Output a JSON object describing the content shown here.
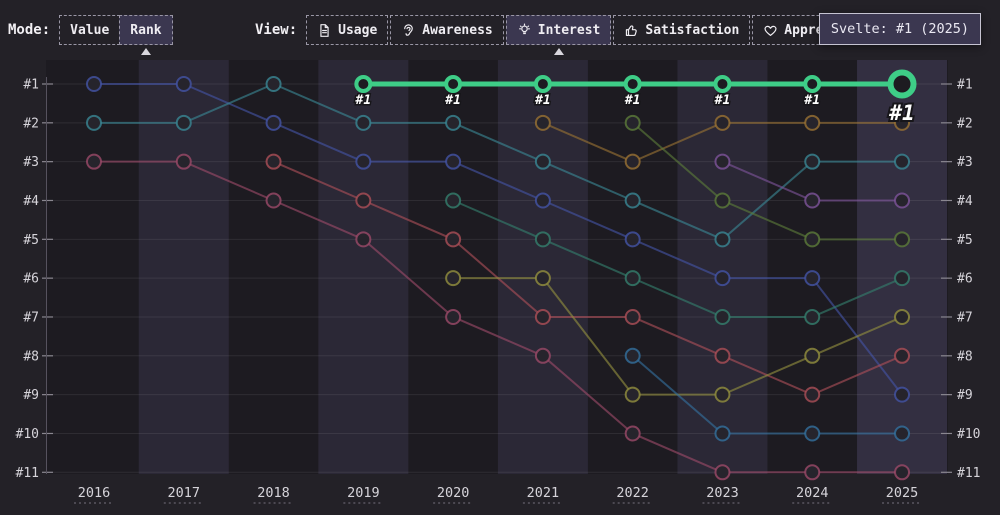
{
  "toolbar": {
    "mode_label": "Mode:",
    "mode_options": [
      {
        "label": "Value",
        "selected": false
      },
      {
        "label": "Rank",
        "selected": true
      }
    ],
    "view_label": "View:",
    "view_options": [
      {
        "label": "Usage",
        "icon": "document-icon",
        "selected": false
      },
      {
        "label": "Awareness",
        "icon": "ear-icon",
        "selected": false
      },
      {
        "label": "Interest",
        "icon": "lightbulb-icon",
        "selected": true
      },
      {
        "label": "Satisfaction",
        "icon": "thumbs-up-icon",
        "selected": false
      },
      {
        "label": "Appreciation",
        "icon": "heart-icon",
        "selected": false
      }
    ]
  },
  "tooltip": {
    "text": "Svelte: #1 (2025)"
  },
  "chart_data": {
    "type": "line",
    "subtype": "bump-rank",
    "x_labels": [
      "2016",
      "2017",
      "2018",
      "2019",
      "2020",
      "2021",
      "2022",
      "2023",
      "2024",
      "2025"
    ],
    "y_labels": [
      "#1",
      "#2",
      "#3",
      "#4",
      "#5",
      "#6",
      "#7",
      "#8",
      "#9",
      "#10",
      "#11"
    ],
    "y_axis_sides": "both",
    "grid": true,
    "highlight_series": "Svelte",
    "highlight_point_label": "#1",
    "colors": {
      "plot_bg": "#1d1b21",
      "band": "#2b2836",
      "band_active": "#332f41",
      "grid": "rgba(255,255,255,0.08)",
      "axis": "#56525e",
      "tick": "#8a8790",
      "label": "#d6d4da",
      "highlight": "#3ecd87"
    },
    "series": [
      {
        "name": "royal-blue",
        "color": "#4454a6",
        "ranks": [
          1,
          1,
          2,
          3,
          3,
          4,
          5,
          6,
          6,
          9
        ]
      },
      {
        "name": "teal",
        "color": "#3a8795",
        "ranks": [
          2,
          2,
          1,
          2,
          2,
          3,
          4,
          5,
          3,
          3
        ]
      },
      {
        "name": "crimson",
        "color": "#9c4a69",
        "ranks": [
          3,
          3,
          4,
          5,
          7,
          8,
          10,
          11,
          11,
          11
        ]
      },
      {
        "name": "red",
        "color": "#ad4f58",
        "ranks": [
          null,
          null,
          3,
          4,
          5,
          7,
          7,
          8,
          9,
          8
        ]
      },
      {
        "name": "dark-teal",
        "color": "#34806e",
        "ranks": [
          null,
          null,
          null,
          null,
          4,
          5,
          6,
          7,
          7,
          6
        ]
      },
      {
        "name": "olive",
        "color": "#93903f",
        "ranks": [
          null,
          null,
          null,
          null,
          6,
          6,
          9,
          9,
          8,
          7
        ]
      },
      {
        "name": "ochre",
        "color": "#9a7233",
        "ranks": [
          null,
          null,
          null,
          null,
          null,
          2,
          3,
          2,
          2,
          2
        ]
      },
      {
        "name": "dark-green",
        "color": "#5c7c3a",
        "ranks": [
          null,
          null,
          null,
          null,
          null,
          null,
          2,
          4,
          5,
          5
        ]
      },
      {
        "name": "steel-blue",
        "color": "#33719f",
        "ranks": [
          null,
          null,
          null,
          null,
          null,
          null,
          8,
          10,
          10,
          10
        ]
      },
      {
        "name": "purple",
        "color": "#7e549b",
        "ranks": [
          null,
          null,
          null,
          null,
          null,
          null,
          null,
          3,
          4,
          4
        ]
      },
      {
        "name": "Svelte",
        "color": "#3ecd87",
        "highlight": true,
        "ranks": [
          null,
          null,
          null,
          1,
          1,
          1,
          1,
          1,
          1,
          1
        ]
      }
    ]
  }
}
